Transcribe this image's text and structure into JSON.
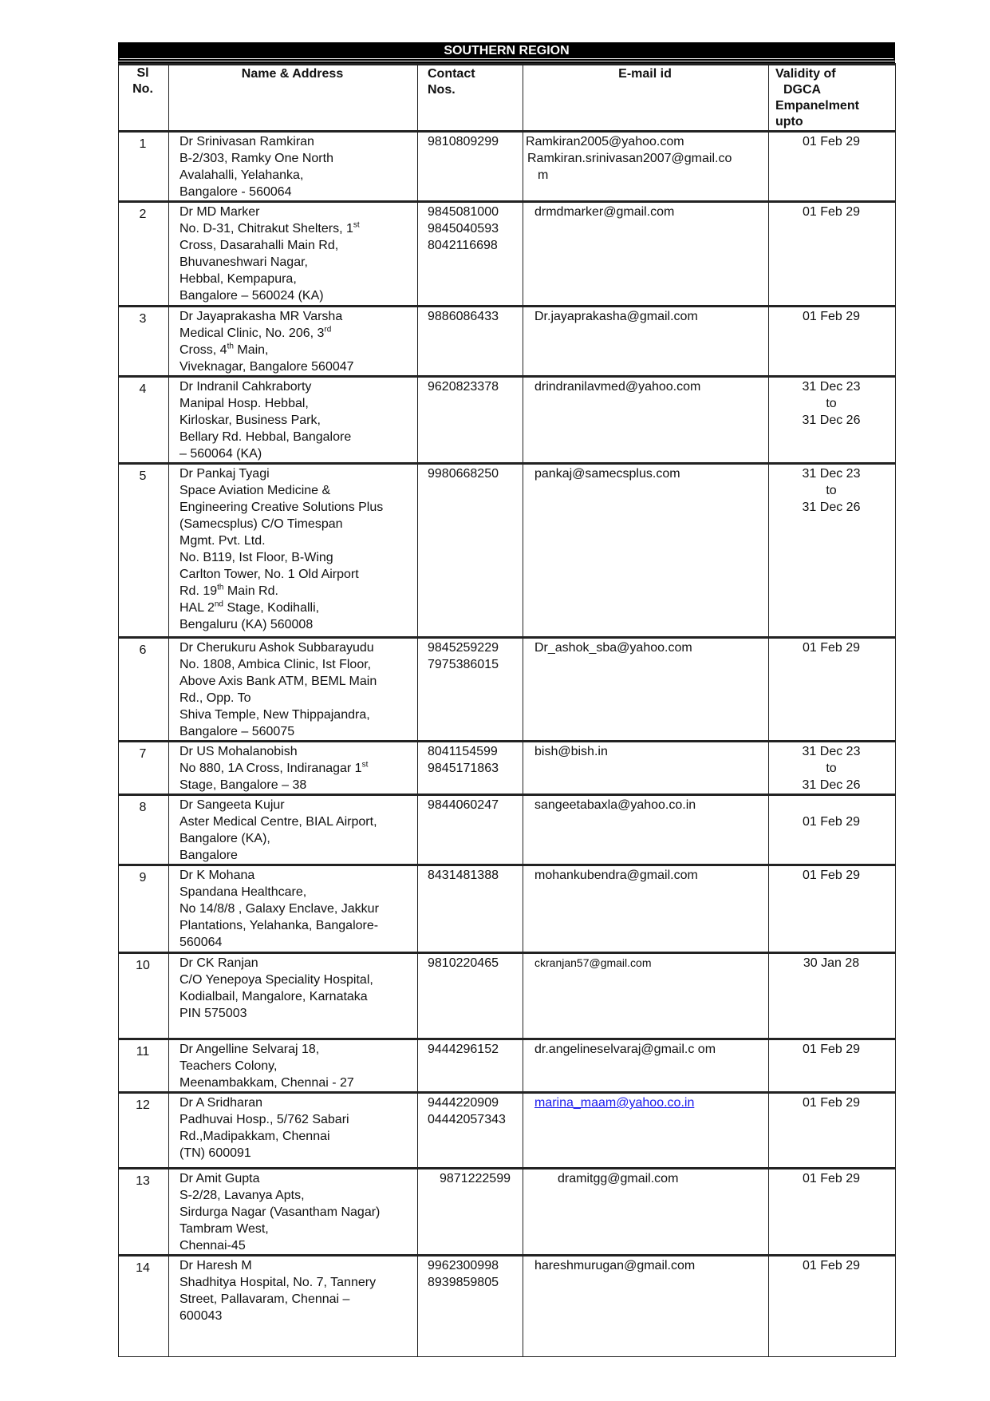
{
  "title": "SOUTHERN REGION",
  "headers": {
    "sl": [
      "Sl",
      "No."
    ],
    "name": [
      "Name & Address"
    ],
    "contact": [
      "Contact",
      "Nos."
    ],
    "email": [
      "E-mail id"
    ],
    "validity": [
      "Validity of",
      "DGCA",
      "Empanelment",
      "upto"
    ]
  },
  "rows": [
    {
      "sl": "1",
      "name": [
        [
          "Dr Srinivasan  Ramkiran"
        ],
        [
          "B-2/303, Ramky One North"
        ],
        [
          "Avalahalli, Yelahanka,"
        ],
        [
          "Bangalore - 560064"
        ]
      ],
      "contact": [
        "9810809299"
      ],
      "email": [
        "Ramkiran2005@yahoo.com",
        "Ramkiran.srinivasan2007@gmail.co",
        "m"
      ],
      "validity": [
        "01 Feb 29"
      ]
    },
    {
      "sl": "2",
      "name": [
        [
          "Dr MD Marker"
        ],
        [
          "No. D-31, Chitrakut Shelters, 1",
          "st",
          ""
        ],
        [
          "Cross, Dasarahalli Main Rd,"
        ],
        [
          "Bhuvaneshwari Nagar,"
        ],
        [
          "Hebbal, Kempapura,"
        ],
        [
          "Bangalore – 560024 (KA)"
        ]
      ],
      "contact": [
        "9845081000",
        "9845040593",
        "8042116698"
      ],
      "email": [
        "drmdmarker@gmail.com"
      ],
      "validity": [
        "01 Feb 29"
      ]
    },
    {
      "sl": "3",
      "name": [
        [
          "Dr Jayaprakasha MR  Varsha"
        ],
        [
          "Medical Clinic, No. 206, 3",
          "rd",
          ""
        ],
        [
          "Cross, 4",
          "th",
          " Main,"
        ],
        [
          "Viveknagar, Bangalore  560047"
        ]
      ],
      "contact": [
        "9886086433"
      ],
      "email": [
        "Dr.jayaprakasha@gmail.com"
      ],
      "validity": [
        "01 Feb 29"
      ]
    },
    {
      "sl": "4",
      "name": [
        [
          "Dr Indranil Cahkraborty"
        ],
        [
          "Manipal Hosp. Hebbal,"
        ],
        [
          "Kirloskar, Business Park,"
        ],
        [
          "Bellary Rd. Hebbal, Bangalore"
        ],
        [
          "– 560064 (KA)"
        ]
      ],
      "contact": [
        "9620823378"
      ],
      "email": [
        "drindranilavmed@yahoo.com"
      ],
      "validity": [
        "31 Dec 23",
        "to",
        "31 Dec 26"
      ]
    },
    {
      "sl": "5",
      "name": [
        [
          "Dr Pankaj Tyagi"
        ],
        [
          "Space Aviation  Medicine &"
        ],
        [
          "Engineering Creative Solutions Plus"
        ],
        [
          "(Samecsplus) C/O Timespan"
        ],
        [
          "Mgmt. Pvt. Ltd."
        ],
        [
          "No. B119, Ist Floor, B-Wing"
        ],
        [
          "Carlton Tower, No. 1 Old Airport"
        ],
        [
          "Rd. 19",
          "th",
          " Main Rd."
        ],
        [
          "HAL 2",
          "nd",
          " Stage, Kodihalli,"
        ],
        [
          "Bengaluru (KA) 560008"
        ]
      ],
      "contact": [
        "9980668250"
      ],
      "email": [
        "pankaj@samecsplus.com"
      ],
      "validity": [
        "31 Dec 23",
        "to",
        "31 Dec 26"
      ]
    },
    {
      "sl": "6",
      "name": [
        [
          "Dr Cherukuru Ashok Subbarayudu"
        ],
        [
          "No. 1808, Ambica Clinic, Ist Floor,"
        ],
        [
          "Above Axis Bank ATM, BEML  Main"
        ],
        [
          "Rd., Opp. To"
        ],
        [
          "Shiva  Temple, New Thippajandra,"
        ],
        [
          "Bangalore – 560075"
        ]
      ],
      "contact": [
        "9845259229",
        "7975386015"
      ],
      "email": [
        "Dr_ashok_sba@yahoo.com"
      ],
      "validity": [
        "01 Feb  29"
      ]
    },
    {
      "sl": "7",
      "name": [
        [
          "Dr US Mohalanobish"
        ],
        [
          "No 880, 1A Cross, Indiranagar 1",
          "st",
          ""
        ],
        [
          "Stage, Bangalore – 38"
        ]
      ],
      "contact": [
        "8041154599",
        "9845171863"
      ],
      "email": [
        "bish@bish.in"
      ],
      "validity": [
        "31 Dec 23",
        "to",
        "31 Dec 26"
      ]
    },
    {
      "sl": "8",
      "name": [
        [
          "Dr Sangeeta Kujur"
        ],
        [
          "Aster Medical Centre, BIAL Airport,"
        ],
        [
          "Bangalore (KA),"
        ],
        [
          "Bangalore"
        ]
      ],
      "contact": [
        "9844060247"
      ],
      "email": [
        "sangeetabaxla@yahoo.co.in"
      ],
      "validity": [
        "",
        "01 Feb 29"
      ]
    },
    {
      "sl": "9",
      "name": [
        [
          "Dr K Mohana"
        ],
        [
          "Spandana  Healthcare,"
        ],
        [
          "No 14/8/8 , Galaxy Enclave, Jakkur"
        ],
        [
          "Plantations, Yelahanka, Bangalore-"
        ],
        [
          "560064"
        ]
      ],
      "contact": [
        "8431481388"
      ],
      "email": [
        "mohankubendra@gmail.com"
      ],
      "validity": [
        "01 Feb 29"
      ]
    },
    {
      "sl": "10",
      "name": [
        [
          "Dr CK Ranjan"
        ],
        [
          " C/O  Yenepoya Speciality Hospital,"
        ],
        [
          "Kodialbail, Mangalore, Karnataka"
        ],
        [
          "PIN 575003"
        ]
      ],
      "contact": [
        "9810220465"
      ],
      "email": [
        "ckranjan57@gmail.com"
      ],
      "validity": [
        "30 Jan 28"
      ]
    },
    {
      "sl": "11",
      "name": [
        [
          "Dr Angelline Selvaraj 18,"
        ],
        [
          "Teachers Colony,"
        ],
        [
          "Meenambakkam, Chennai - 27"
        ]
      ],
      "contact": [
        "9444296152"
      ],
      "email": [
        "dr.angelineselvaraj@gmail.c  om"
      ],
      "validity": [
        "01 Feb 29"
      ]
    },
    {
      "sl": "12",
      "name": [
        [
          "Dr A Sridharan"
        ],
        [
          "Padhuvai Hosp., 5/762 Sabari"
        ],
        [
          "Rd.,Madipakkam, Chennai"
        ],
        [
          "(TN) 600091"
        ]
      ],
      "contact": [
        "9444220909",
        "04442057343"
      ],
      "email": [
        "marina_maam@yahoo.co.in"
      ],
      "validity": [
        "01 Feb 29"
      ]
    },
    {
      "sl": "13",
      "name": [
        [
          "Dr Amit Gupta"
        ],
        [
          "S-2/28, Lavanya Apts,"
        ],
        [
          "Sirdurga Nagar (Vasantham Nagar)"
        ],
        [
          "Tambram West,"
        ],
        [
          "Chennai-45"
        ]
      ],
      "contact": [
        "9871222599"
      ],
      "email": [
        "dramitgg@gmail.com"
      ],
      "validity": [
        "01 Feb 29"
      ]
    },
    {
      "sl": "14",
      "name": [
        [
          "Dr Haresh M"
        ],
        [
          "Shadhitya Hospital, No. 7, Tannery"
        ],
        [
          "Street, Pallavaram, Chennai –"
        ],
        [
          "600043"
        ]
      ],
      "contact": [
        "9962300998",
        "8939859805"
      ],
      "email": [
        "hareshmurugan@gmail.com"
      ],
      "validity": [
        "01 Feb 29"
      ]
    }
  ],
  "link_color": "#1a1aee"
}
